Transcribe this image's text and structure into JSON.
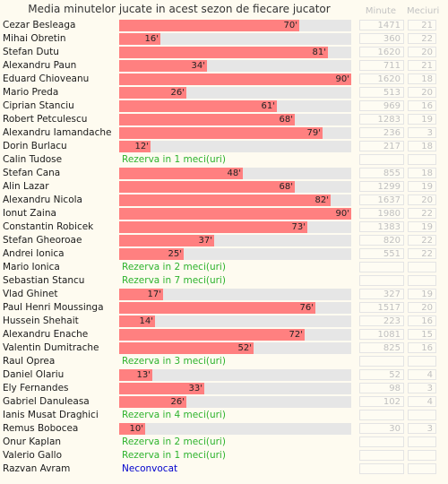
{
  "title": "Media minutelor jucate in acest sezon de fiecare jucator",
  "header": {
    "minute": "Minute",
    "meciuri": "Meciuri"
  },
  "colors": {
    "bar": "#ff8080",
    "track": "#e6e6e6",
    "reserve": "#2db32d",
    "uncalled": "#0000cc"
  },
  "chart_data": {
    "type": "bar",
    "orientation": "horizontal",
    "title": "Media minutelor jucate in acest sezon de fiecare jucator",
    "xlim": [
      0,
      90
    ],
    "categories": [
      "Cezar Besleaga",
      "Mihai Obretin",
      "Stefan Dutu",
      "Alexandru Paun",
      "Eduard Chioveanu",
      "Mario Preda",
      "Ciprian Stanciu",
      "Robert Petculescu",
      "Alexandru Iamandache",
      "Dorin Burlacu",
      "Calin Tudose",
      "Stefan Cana",
      "Alin Lazar",
      "Alexandru Nicola",
      "Ionut Zaina",
      "Constantin Robicek",
      "Stefan Gheoroae",
      "Andrei Ionica",
      "Mario Ionica",
      "Sebastian Stancu",
      "Vlad Ghinet",
      "Paul Henri Moussinga",
      "Hussein Shehait",
      "Alexandru Enache",
      "Valentin Dumitrache",
      "Raul Oprea",
      "Daniel Olariu",
      "Ely Fernandes",
      "Gabriel Danuleasa",
      "Ianis Musat Draghici",
      "Remus Bobocea",
      "Onur Kaplan",
      "Valerio Gallo",
      "Razvan Avram"
    ],
    "values": [
      70,
      16,
      81,
      34,
      90,
      26,
      61,
      68,
      79,
      12,
      null,
      48,
      68,
      82,
      90,
      73,
      37,
      25,
      null,
      null,
      17,
      76,
      14,
      72,
      52,
      null,
      13,
      33,
      26,
      null,
      10,
      null,
      null,
      null
    ]
  },
  "rows": [
    {
      "name": "Cezar Besleaga",
      "avg": 70,
      "label": "70'",
      "minute": "1471",
      "meciuri": "21"
    },
    {
      "name": "Mihai Obretin",
      "avg": 16,
      "label": "16'",
      "minute": "360",
      "meciuri": "22"
    },
    {
      "name": "Stefan Dutu",
      "avg": 81,
      "label": "81'",
      "minute": "1620",
      "meciuri": "20"
    },
    {
      "name": "Alexandru Paun",
      "avg": 34,
      "label": "34'",
      "minute": "711",
      "meciuri": "21"
    },
    {
      "name": "Eduard Chioveanu",
      "avg": 90,
      "label": "90'",
      "minute": "1620",
      "meciuri": "18"
    },
    {
      "name": "Mario Preda",
      "avg": 26,
      "label": "26'",
      "minute": "513",
      "meciuri": "20"
    },
    {
      "name": "Ciprian Stanciu",
      "avg": 61,
      "label": "61'",
      "minute": "969",
      "meciuri": "16"
    },
    {
      "name": "Robert Petculescu",
      "avg": 68,
      "label": "68'",
      "minute": "1283",
      "meciuri": "19"
    },
    {
      "name": "Alexandru Iamandache",
      "avg": 79,
      "label": "79'",
      "minute": "236",
      "meciuri": "3"
    },
    {
      "name": "Dorin Burlacu",
      "avg": 12,
      "label": "12'",
      "minute": "217",
      "meciuri": "18"
    },
    {
      "name": "Calin Tudose",
      "note": "Rezerva in 1 meci(uri)",
      "kind": "reserve",
      "minute": "",
      "meciuri": ""
    },
    {
      "name": "Stefan Cana",
      "avg": 48,
      "label": "48'",
      "minute": "855",
      "meciuri": "18"
    },
    {
      "name": "Alin Lazar",
      "avg": 68,
      "label": "68'",
      "minute": "1299",
      "meciuri": "19"
    },
    {
      "name": "Alexandru Nicola",
      "avg": 82,
      "label": "82'",
      "minute": "1637",
      "meciuri": "20"
    },
    {
      "name": "Ionut Zaina",
      "avg": 90,
      "label": "90'",
      "minute": "1980",
      "meciuri": "22"
    },
    {
      "name": "Constantin Robicek",
      "avg": 73,
      "label": "73'",
      "minute": "1383",
      "meciuri": "19"
    },
    {
      "name": "Stefan Gheoroae",
      "avg": 37,
      "label": "37'",
      "minute": "820",
      "meciuri": "22"
    },
    {
      "name": "Andrei Ionica",
      "avg": 25,
      "label": "25'",
      "minute": "551",
      "meciuri": "22"
    },
    {
      "name": "Mario Ionica",
      "note": "Rezerva in 2 meci(uri)",
      "kind": "reserve",
      "minute": "",
      "meciuri": ""
    },
    {
      "name": "Sebastian Stancu",
      "note": "Rezerva in 7 meci(uri)",
      "kind": "reserve",
      "minute": "",
      "meciuri": ""
    },
    {
      "name": "Vlad Ghinet",
      "avg": 17,
      "label": "17'",
      "minute": "327",
      "meciuri": "19"
    },
    {
      "name": "Paul Henri Moussinga",
      "avg": 76,
      "label": "76'",
      "minute": "1517",
      "meciuri": "20"
    },
    {
      "name": "Hussein Shehait",
      "avg": 14,
      "label": "14'",
      "minute": "223",
      "meciuri": "16"
    },
    {
      "name": "Alexandru Enache",
      "avg": 72,
      "label": "72'",
      "minute": "1081",
      "meciuri": "15"
    },
    {
      "name": "Valentin Dumitrache",
      "avg": 52,
      "label": "52'",
      "minute": "825",
      "meciuri": "16"
    },
    {
      "name": "Raul Oprea",
      "note": "Rezerva in 3 meci(uri)",
      "kind": "reserve",
      "minute": "",
      "meciuri": ""
    },
    {
      "name": "Daniel Olariu",
      "avg": 13,
      "label": "13'",
      "minute": "52",
      "meciuri": "4"
    },
    {
      "name": "Ely Fernandes",
      "avg": 33,
      "label": "33'",
      "minute": "98",
      "meciuri": "3"
    },
    {
      "name": "Gabriel Danuleasa",
      "avg": 26,
      "label": "26'",
      "minute": "102",
      "meciuri": "4"
    },
    {
      "name": "Ianis Musat Draghici",
      "note": "Rezerva in 4 meci(uri)",
      "kind": "reserve",
      "minute": "",
      "meciuri": ""
    },
    {
      "name": "Remus Bobocea",
      "avg": 10,
      "label": "10'",
      "minute": "30",
      "meciuri": "3"
    },
    {
      "name": "Onur Kaplan",
      "note": "Rezerva in 2 meci(uri)",
      "kind": "reserve",
      "minute": "",
      "meciuri": ""
    },
    {
      "name": "Valerio Gallo",
      "note": "Rezerva in 1 meci(uri)",
      "kind": "reserve",
      "minute": "",
      "meciuri": ""
    },
    {
      "name": "Razvan Avram",
      "note": "Neconvocat",
      "kind": "uncalled",
      "minute": "",
      "meciuri": ""
    }
  ]
}
